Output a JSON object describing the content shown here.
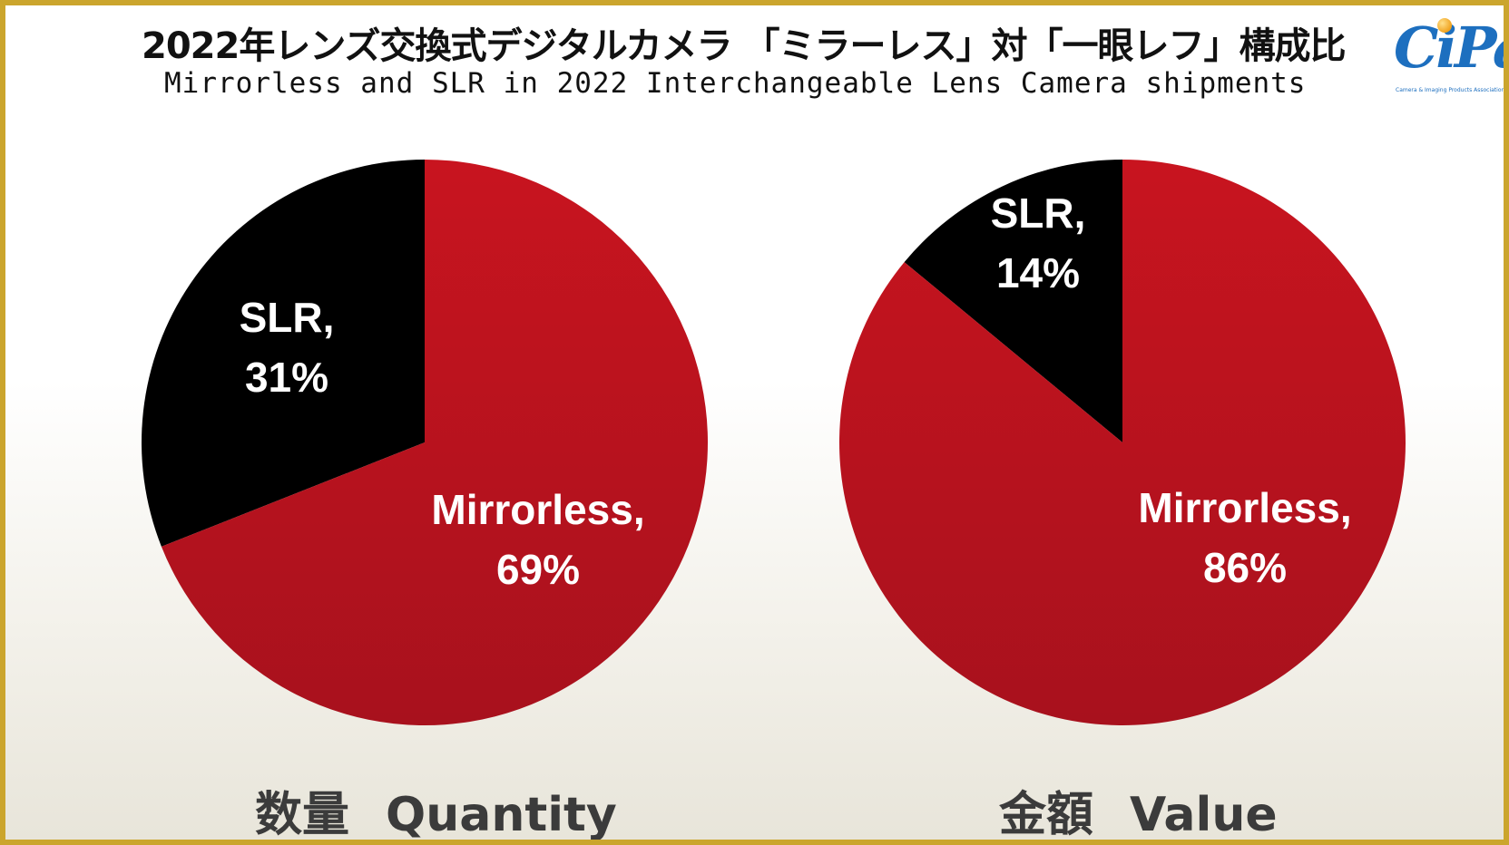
{
  "title_jp": "2022年レンズ交換式デジタルカメラ 「ミラーレス」対「一眼レフ」構成比",
  "title_en": "Mirrorless and SLR in 2022 Interchangeable Lens Camera shipments",
  "logo": {
    "text": "CiPa",
    "subtitle": "Camera & Imaging Products Association"
  },
  "colors": {
    "mirrorless": "#c0141f",
    "slr": "#000000"
  },
  "chart_data": [
    {
      "type": "pie",
      "caption_jp": "数量",
      "caption_en": "Quantity",
      "slices": [
        {
          "name": "SLR",
          "label_line1": "SLR,",
          "label_line2": "31%",
          "value": 31
        },
        {
          "name": "Mirrorless",
          "label_line1": "Mirrorless,",
          "label_line2": "69%",
          "value": 69
        }
      ]
    },
    {
      "type": "pie",
      "caption_jp": "金額",
      "caption_en": "Value",
      "slices": [
        {
          "name": "SLR",
          "label_line1": "SLR,",
          "label_line2": "14%",
          "value": 14
        },
        {
          "name": "Mirrorless",
          "label_line1": "Mirrorless,",
          "label_line2": "86%",
          "value": 86
        }
      ]
    }
  ]
}
